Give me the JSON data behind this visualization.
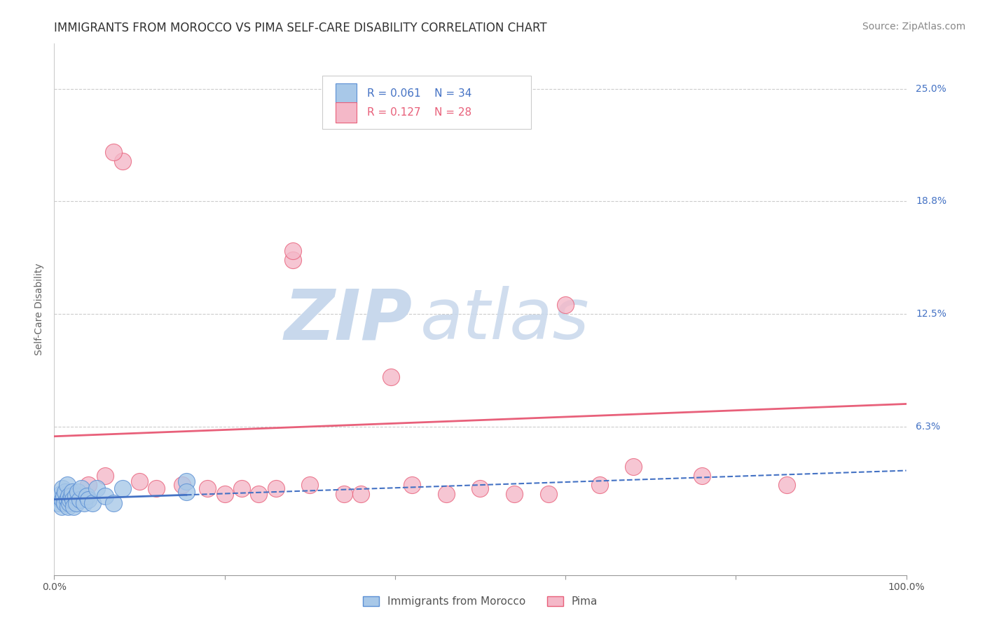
{
  "title": "IMMIGRANTS FROM MOROCCO VS PIMA SELF-CARE DISABILITY CORRELATION CHART",
  "source": "Source: ZipAtlas.com",
  "ylabel": "Self-Care Disability",
  "r_blue": 0.061,
  "n_blue": 34,
  "r_pink": 0.127,
  "n_pink": 28,
  "xlim": [
    0.0,
    1.0
  ],
  "ylim": [
    -0.02,
    0.275
  ],
  "ytick_vals": [
    0.0625,
    0.125,
    0.1875,
    0.25
  ],
  "ytick_labels": [
    "6.3%",
    "12.5%",
    "18.8%",
    "25.0%"
  ],
  "background_color": "#ffffff",
  "grid_color": "#cccccc",
  "blue_color": "#a8c8e8",
  "blue_line_color": "#4472c4",
  "blue_edge_color": "#5b8fd4",
  "pink_color": "#f4b8c8",
  "pink_line_color": "#e8607a",
  "pink_edge_color": "#e8607a",
  "watermark_zip_color": "#c8d8ec",
  "watermark_atlas_color": "#c8d8ec",
  "blue_scatter_x": [
    0.005,
    0.007,
    0.008,
    0.009,
    0.01,
    0.01,
    0.011,
    0.012,
    0.013,
    0.015,
    0.015,
    0.016,
    0.017,
    0.018,
    0.019,
    0.02,
    0.021,
    0.022,
    0.023,
    0.025,
    0.026,
    0.028,
    0.03,
    0.032,
    0.035,
    0.038,
    0.04,
    0.045,
    0.05,
    0.06,
    0.07,
    0.08,
    0.155,
    0.155
  ],
  "blue_scatter_y": [
    0.02,
    0.022,
    0.025,
    0.018,
    0.022,
    0.028,
    0.024,
    0.02,
    0.026,
    0.022,
    0.03,
    0.018,
    0.024,
    0.02,
    0.022,
    0.024,
    0.026,
    0.022,
    0.018,
    0.024,
    0.02,
    0.026,
    0.022,
    0.028,
    0.02,
    0.024,
    0.022,
    0.02,
    0.028,
    0.024,
    0.02,
    0.028,
    0.032,
    0.026
  ],
  "pink_scatter_x": [
    0.08,
    0.07,
    0.28,
    0.28,
    0.6,
    0.395,
    0.04,
    0.06,
    0.1,
    0.12,
    0.15,
    0.18,
    0.2,
    0.22,
    0.24,
    0.26,
    0.3,
    0.34,
    0.36,
    0.42,
    0.46,
    0.5,
    0.54,
    0.58,
    0.64,
    0.68,
    0.76,
    0.86
  ],
  "pink_scatter_y": [
    0.21,
    0.215,
    0.155,
    0.16,
    0.13,
    0.09,
    0.03,
    0.035,
    0.032,
    0.028,
    0.03,
    0.028,
    0.025,
    0.028,
    0.025,
    0.028,
    0.03,
    0.025,
    0.025,
    0.03,
    0.025,
    0.028,
    0.025,
    0.025,
    0.03,
    0.04,
    0.035,
    0.03
  ],
  "title_fontsize": 12,
  "axis_label_fontsize": 10,
  "tick_fontsize": 10,
  "legend_fontsize": 11,
  "source_fontsize": 10,
  "blue_trend_start": 0.0,
  "blue_trend_solid_end": 0.155,
  "blue_trend_end": 1.0,
  "pink_trend_start": 0.0,
  "pink_trend_end": 1.0
}
